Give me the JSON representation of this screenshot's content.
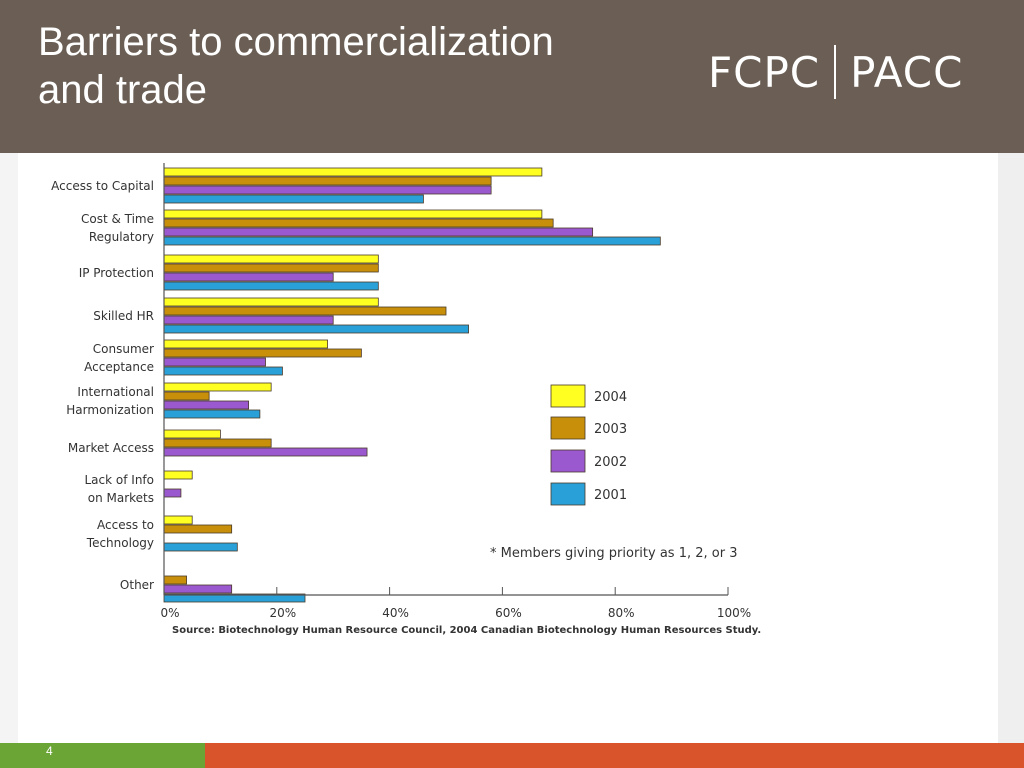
{
  "slide": {
    "title_line1": "Barriers to commercialization",
    "title_line2": "and trade",
    "logo_left": "FCPC",
    "logo_right": "PACC",
    "page_number": "4",
    "colors": {
      "header": "#6b5f55",
      "footer_green": "#6aa535",
      "footer_orange": "#d9542a"
    }
  },
  "chart_data": {
    "type": "bar",
    "orientation": "horizontal",
    "categories": [
      [
        "Access to Capital"
      ],
      [
        "Cost & Time",
        "Regulatory"
      ],
      [
        "IP Protection"
      ],
      [
        "Skilled HR"
      ],
      [
        "Consumer",
        "Acceptance"
      ],
      [
        "International",
        "Harmonization"
      ],
      [
        "Market Access"
      ],
      [
        "Lack of Info",
        "on Markets"
      ],
      [
        "Access to",
        "Technology"
      ],
      [
        "Other"
      ]
    ],
    "series": [
      {
        "name": "2004",
        "color": "#ffff22",
        "values": [
          67,
          67,
          38,
          38,
          29,
          19,
          10,
          5,
          5,
          0
        ]
      },
      {
        "name": "2003",
        "color": "#c8900a",
        "values": [
          58,
          69,
          38,
          50,
          35,
          8,
          19,
          0,
          12,
          4
        ]
      },
      {
        "name": "2002",
        "color": "#9b59d0",
        "values": [
          58,
          76,
          30,
          30,
          18,
          15,
          36,
          3,
          0,
          12
        ]
      },
      {
        "name": "2001",
        "color": "#2aa0d8",
        "values": [
          46,
          88,
          38,
          54,
          21,
          17,
          0,
          0,
          13,
          25
        ]
      }
    ],
    "x_ticks": [
      "0%",
      "20%",
      "40%",
      "60%",
      "80%",
      "100%"
    ],
    "xlim": [
      0,
      100
    ],
    "legend_position": "right",
    "note": "* Members giving priority as 1, 2, or 3",
    "source": "Source:  Biotechnology Human Resource Council, 2004 Canadian Biotechnology Human  Resources Study."
  }
}
